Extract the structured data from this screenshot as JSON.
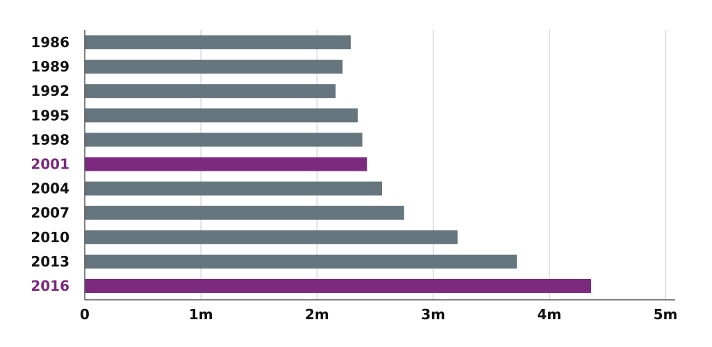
{
  "chart_data": {
    "type": "bar",
    "orientation": "horizontal",
    "categories": [
      "1986",
      "1989",
      "1992",
      "1995",
      "1998",
      "2001",
      "2004",
      "2007",
      "2010",
      "2013",
      "2016"
    ],
    "values": [
      2.29,
      2.22,
      2.16,
      2.35,
      2.39,
      2.43,
      2.56,
      2.75,
      3.21,
      3.72,
      4.36
    ],
    "highlighted": [
      "2001",
      "2016"
    ],
    "xlim": [
      0,
      5
    ],
    "xticks": [
      0,
      1,
      2,
      3,
      4,
      5
    ],
    "xtick_labels": [
      "0",
      "1m",
      "2m",
      "3m",
      "4m",
      "5m"
    ],
    "grid": "vertical",
    "title": "",
    "xlabel": "",
    "ylabel": ""
  },
  "colors": {
    "bar": "#65767e",
    "highlight": "#7b2a7e",
    "label": "#111111",
    "grid": "#c8c8d8",
    "axis": "#555555"
  }
}
